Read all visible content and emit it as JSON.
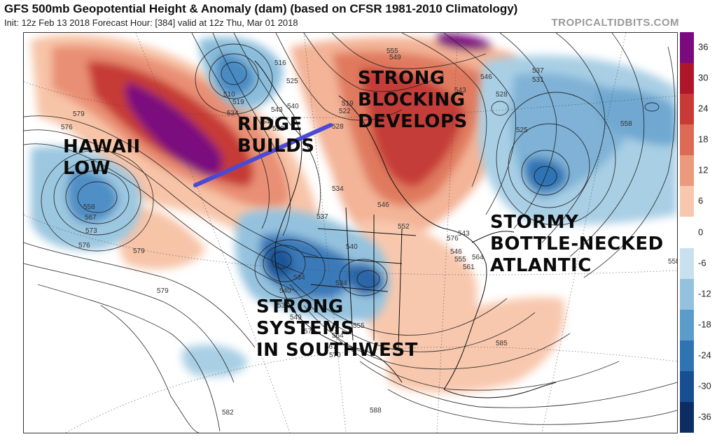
{
  "header": {
    "title": "GFS 500mb Geopotential Height & Anomaly (dam) (based on CFSR 1981-2010 Climatology)",
    "subtitle": "Init: 12z Feb 13 2018   Forecast Hour: [384]   valid at 12z Thu, Mar 01 2018",
    "brand": "TROPICALTIDBITS.COM"
  },
  "annotations": {
    "hawaii": [
      "HAWAII",
      "LOW"
    ],
    "ridge": [
      "RIDGE",
      "BUILDS"
    ],
    "blocking": [
      "STRONG",
      "BLOCKING",
      "DEVELOPS"
    ],
    "southwest": [
      "STRONG",
      "SYSTEMS",
      "IN SOUTHWEST"
    ],
    "atlantic": [
      "STORMY",
      "BOTTLE-NECKED",
      "ATLANTIC"
    ]
  },
  "colorbar": {
    "labels": [
      "36",
      "30",
      "24",
      "18",
      "12",
      "6",
      "0",
      "-6",
      "-12",
      "-18",
      "-24",
      "-30",
      "-36"
    ],
    "colors": [
      "#7b0a7e",
      "#b0162a",
      "#c93a37",
      "#dc6a55",
      "#ec9a7c",
      "#f8c8ae",
      "#ffffff",
      "#c9e1ee",
      "#94c2de",
      "#5c9ccb",
      "#2f73b3",
      "#174f90",
      "#0b2d63"
    ]
  },
  "contour_labels": [
    "579",
    "576",
    "558",
    "567",
    "573",
    "576",
    "579",
    "579",
    "582",
    "516",
    "510",
    "519",
    "525",
    "534",
    "543",
    "540",
    "549",
    "552",
    "528",
    "522",
    "519",
    "534",
    "537",
    "540",
    "546",
    "552",
    "555",
    "549",
    "537",
    "531",
    "546",
    "543",
    "528",
    "525",
    "558",
    "534",
    "540",
    "534",
    "537",
    "549",
    "555",
    "564",
    "567",
    "573",
    "570",
    "576",
    "543",
    "546",
    "555",
    "561",
    "564",
    "558",
    "585",
    "588",
    "585"
  ]
}
